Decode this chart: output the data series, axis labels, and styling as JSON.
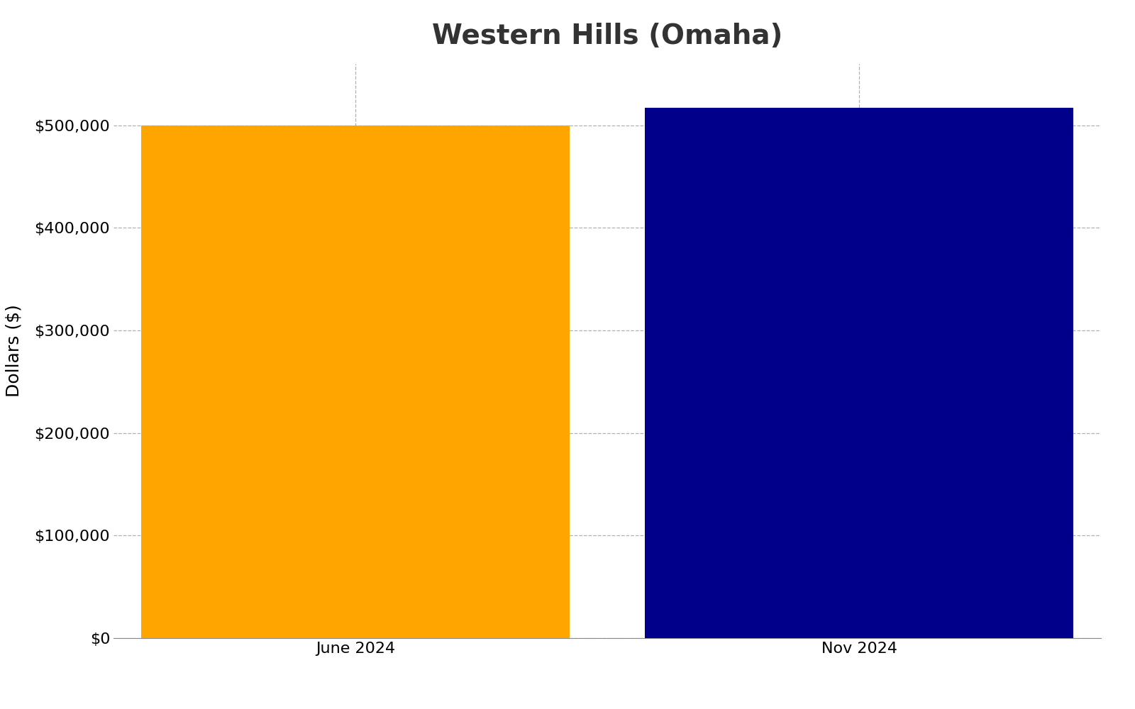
{
  "title": "Western Hills (Omaha)",
  "categories": [
    "June 2024",
    "Nov 2024"
  ],
  "values": [
    500000,
    517000
  ],
  "bar_colors": [
    "#FFA500",
    "#00008B"
  ],
  "ylabel": "Dollars ($)",
  "ylim": [
    0,
    560000
  ],
  "yticks": [
    0,
    100000,
    200000,
    300000,
    400000,
    500000
  ],
  "background_color": "#ffffff",
  "grid_color": "#b0b0b0",
  "title_fontsize": 28,
  "axis_label_fontsize": 18,
  "tick_fontsize": 16,
  "title_color": "#333333",
  "bar_width": 0.85
}
